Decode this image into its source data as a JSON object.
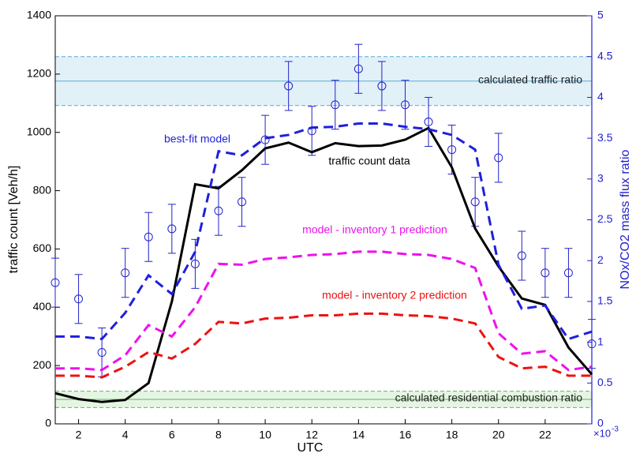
{
  "chart_data": {
    "type": "line",
    "xlabel": "UTC",
    "ylabel": "traffic count [Veh/h]",
    "y2label": "NOx/CO2 mass flux ratio",
    "y2_multiplier_base": "×10",
    "y2_multiplier_exponent": "-3",
    "y2_color": "#2222cc",
    "xlim": [
      1,
      24
    ],
    "xticks": [
      2,
      4,
      6,
      8,
      10,
      12,
      14,
      16,
      18,
      20,
      22
    ],
    "ylim": [
      0,
      1400
    ],
    "yticks": [
      0,
      200,
      400,
      600,
      800,
      1000,
      1200,
      1400
    ],
    "y2lim": [
      0,
      5
    ],
    "y2ticks": [
      0,
      0.5,
      1,
      1.5,
      2,
      2.5,
      3,
      3.5,
      4,
      4.5,
      5
    ],
    "grid": false,
    "x": [
      1,
      2,
      3,
      4,
      5,
      6,
      7,
      8,
      9,
      10,
      11,
      12,
      13,
      14,
      15,
      16,
      17,
      18,
      19,
      20,
      21,
      22,
      23,
      24
    ],
    "bands": [
      {
        "name": "calculated traffic ratio",
        "value": 4.2,
        "range": [
          3.9,
          4.5
        ],
        "color": "#5aa9d6",
        "fill": "#e2f1f8",
        "axis": "y2"
      },
      {
        "name": "calculated residential combustion ratio",
        "value": 0.3,
        "range": [
          0.2,
          0.4
        ],
        "color": "#5cb85c",
        "fill": "#e6f5e3",
        "axis": "y2"
      }
    ],
    "series": [
      {
        "name": "traffic count data",
        "color": "#000000",
        "dashed": false,
        "axis": "y",
        "values": [
          105,
          85,
          75,
          82,
          140,
          420,
          822,
          808,
          870,
          945,
          965,
          932,
          963,
          953,
          955,
          975,
          1015,
          880,
          670,
          540,
          430,
          408,
          262,
          170
        ]
      },
      {
        "name": "best-fit model",
        "color": "#1f1fdd",
        "dashed": true,
        "axis": "y2",
        "values": [
          1.07,
          1.07,
          1.04,
          1.36,
          1.82,
          1.59,
          2.11,
          3.34,
          3.29,
          3.5,
          3.54,
          3.63,
          3.64,
          3.68,
          3.68,
          3.64,
          3.61,
          3.54,
          3.36,
          1.95,
          1.41,
          1.45,
          1.04,
          1.13
        ]
      },
      {
        "name": "model - inventory 1 prediction",
        "color": "#ee11ee",
        "dashed": true,
        "axis": "y2",
        "values": [
          0.68,
          0.68,
          0.66,
          0.84,
          1.21,
          1.07,
          1.43,
          1.96,
          1.95,
          2.02,
          2.04,
          2.07,
          2.08,
          2.11,
          2.11,
          2.08,
          2.07,
          2.02,
          1.91,
          1.11,
          0.86,
          0.89,
          0.66,
          0.7
        ]
      },
      {
        "name": "model - inventory 2 prediction",
        "color": "#ee1111",
        "dashed": true,
        "axis": "y2",
        "values": [
          0.59,
          0.59,
          0.57,
          0.7,
          0.88,
          0.8,
          0.98,
          1.25,
          1.23,
          1.29,
          1.3,
          1.33,
          1.33,
          1.35,
          1.35,
          1.33,
          1.32,
          1.29,
          1.23,
          0.82,
          0.68,
          0.7,
          0.59,
          0.59
        ]
      }
    ],
    "observations": {
      "color": "#2222cc",
      "axis": "y2",
      "values": [
        1.73,
        1.53,
        0.875,
        1.85,
        2.29,
        2.39,
        1.96,
        2.61,
        2.72,
        3.48,
        4.14,
        3.59,
        3.91,
        4.35,
        4.14,
        3.91,
        3.7,
        3.36,
        2.72,
        3.26,
        2.06,
        1.85,
        1.85,
        0.98
      ],
      "errors": [
        0.3,
        0.3,
        0.3,
        0.3,
        0.3,
        0.3,
        0.3,
        0.3,
        0.3,
        0.3,
        0.3,
        0.3,
        0.3,
        0.3,
        0.3,
        0.3,
        0.3,
        0.3,
        0.3,
        0.3,
        0.3,
        0.3,
        0.3,
        0.3
      ]
    }
  }
}
